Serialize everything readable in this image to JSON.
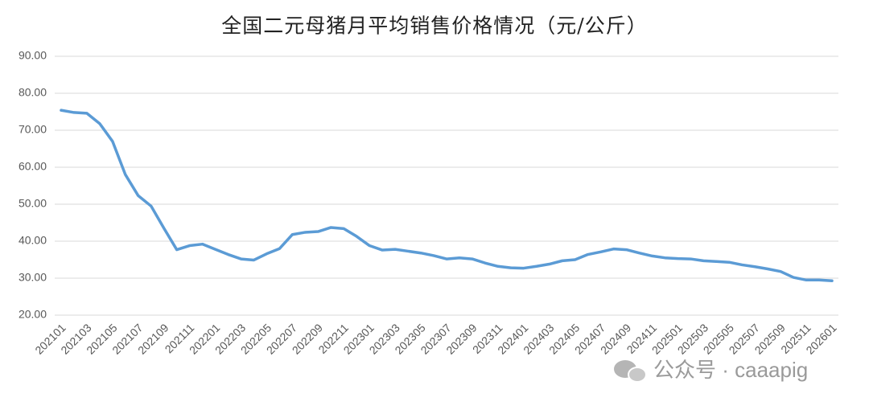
{
  "chart_data": {
    "type": "line",
    "title": "全国二元母猪月平均销售价格情况（元/公斤）",
    "categories": [
      "202101",
      null,
      "202103",
      null,
      "202105",
      null,
      "202107",
      null,
      "202109",
      null,
      "202111",
      null,
      "202201",
      null,
      "202203",
      null,
      "202205",
      null,
      "202207",
      null,
      "202209",
      null,
      "202211",
      null,
      "202301",
      null,
      "202303",
      null,
      "202305",
      null,
      "202307",
      null,
      "202309",
      null,
      "202311",
      null,
      "202401",
      null,
      "202403",
      null,
      "202405",
      null,
      "202407",
      null,
      "202409",
      null,
      "202411",
      null,
      "202501",
      null,
      "202503",
      null,
      "202505",
      null,
      "202507",
      null,
      "202509",
      null,
      "202511",
      null,
      "202601"
    ],
    "values": [
      75.4,
      74.8,
      74.6,
      71.8,
      67.0,
      58.0,
      52.3,
      49.5,
      43.5,
      37.7,
      38.8,
      39.2,
      37.8,
      36.4,
      35.2,
      34.9,
      36.6,
      38.0,
      41.8,
      42.4,
      42.6,
      43.7,
      43.4,
      41.3,
      38.8,
      37.6,
      37.8,
      37.3,
      36.8,
      36.1,
      35.2,
      35.5,
      35.2,
      34.1,
      33.2,
      32.8,
      32.7,
      33.2,
      33.8,
      34.7,
      35.0,
      36.4,
      37.1,
      37.9,
      37.7,
      36.8,
      36.0,
      35.5,
      35.3,
      35.2,
      34.7,
      34.5,
      34.3,
      33.6,
      33.1,
      32.5,
      31.8,
      30.2,
      29.5,
      29.5,
      29.3
    ],
    "color": "#5b9bd5",
    "ylim": [
      20,
      90
    ],
    "yticks": [
      {
        "value": 20,
        "label": "20.00"
      },
      {
        "value": 30,
        "label": "30.00"
      },
      {
        "value": 40,
        "label": "40.00"
      },
      {
        "value": 50,
        "label": "50.00"
      },
      {
        "value": 60,
        "label": "60.00"
      },
      {
        "value": 70,
        "label": "70.00"
      },
      {
        "value": 80,
        "label": "80.00"
      },
      {
        "value": 90,
        "label": "90.00"
      }
    ],
    "grid": true,
    "watermark": "公众号 · caaapig"
  }
}
